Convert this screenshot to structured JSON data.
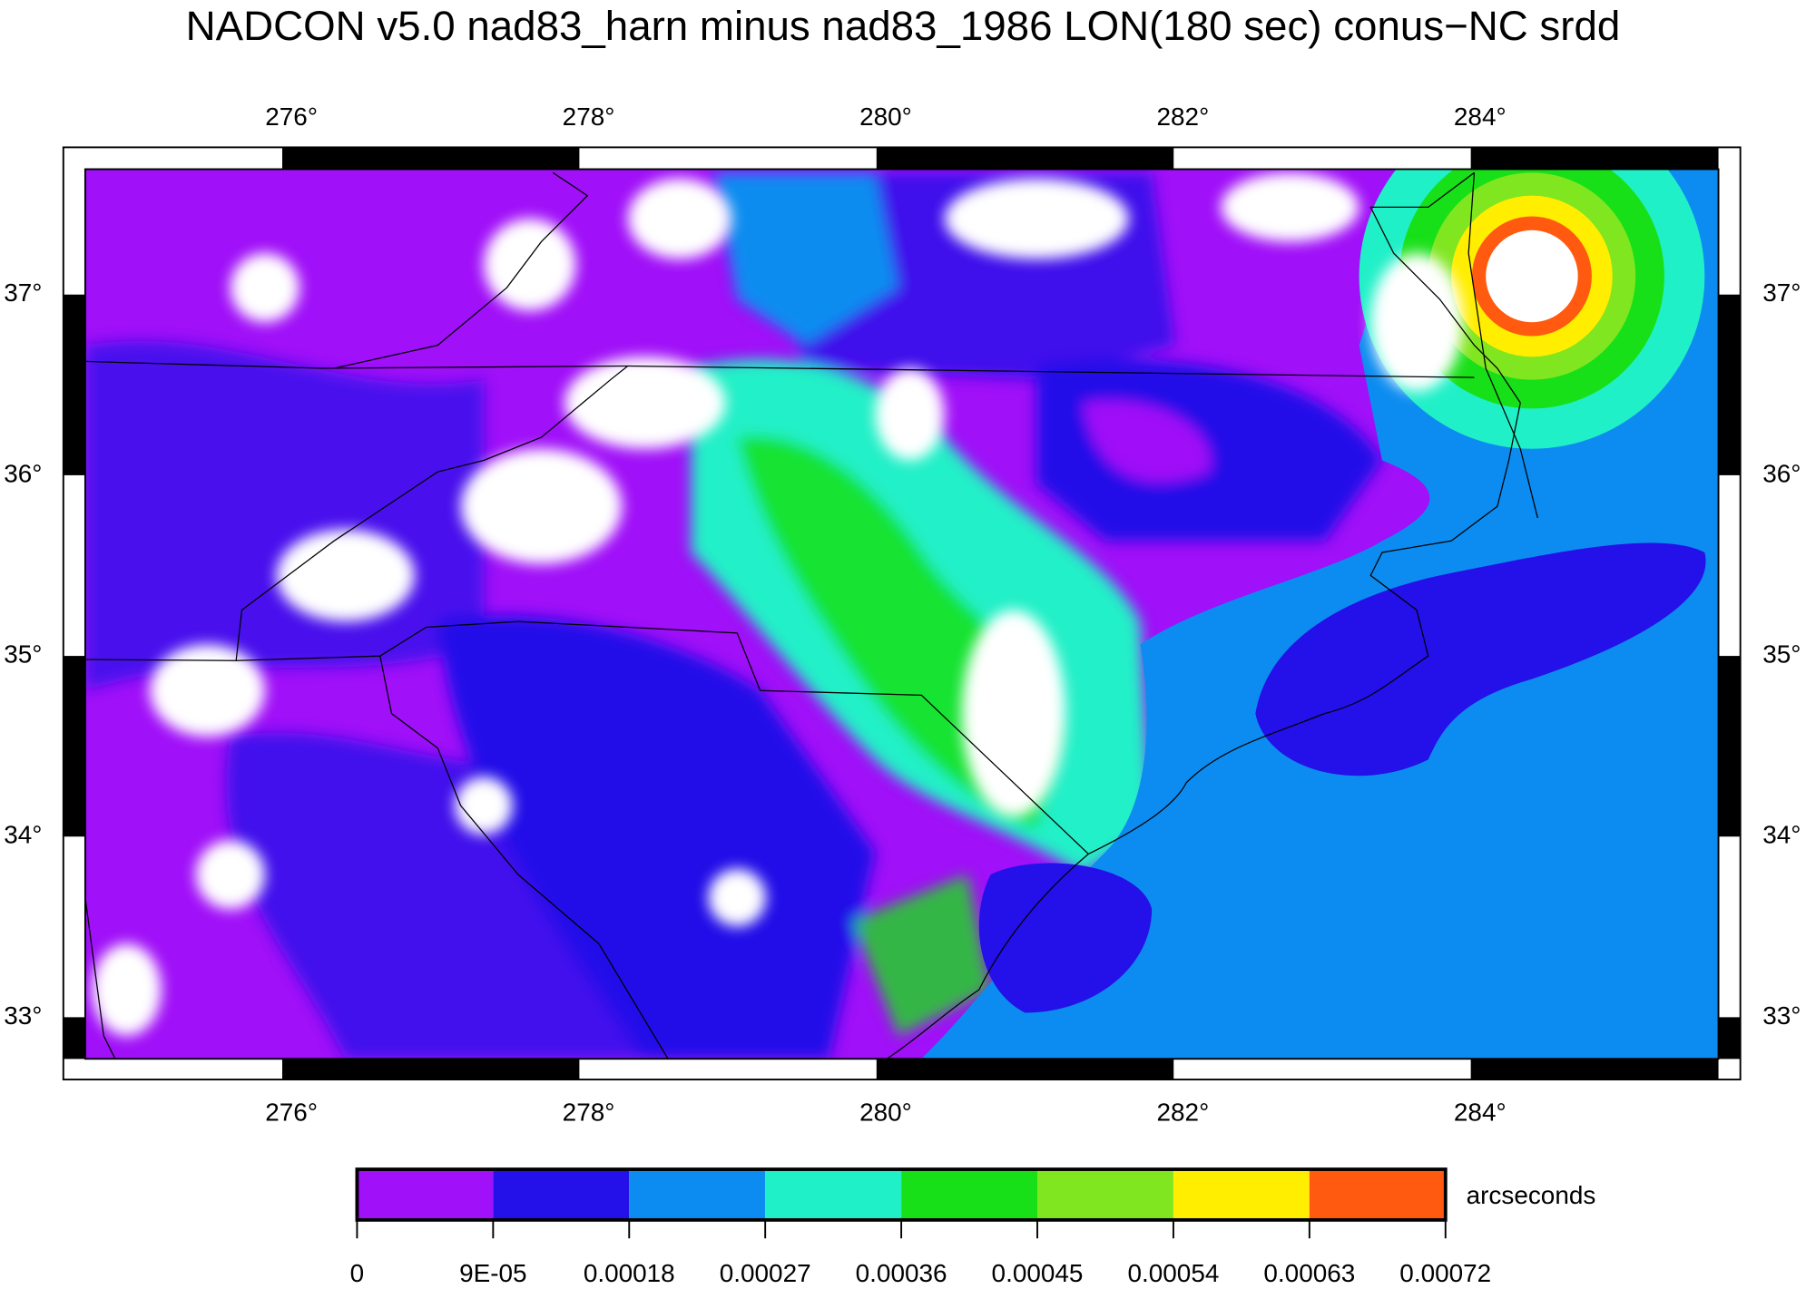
{
  "chart_data": {
    "type": "map",
    "title": "NADCON v5.0 nad83_harn minus nad83_1986 LON(180 sec) conus−NC srdd",
    "xlim": [
      274.674,
      285.667
    ],
    "ylim": [
      32.77,
      37.694
    ],
    "xticks": [
      {
        "value": 276,
        "label": "276°"
      },
      {
        "value": 278,
        "label": "278°"
      },
      {
        "value": 280,
        "label": "280°"
      },
      {
        "value": 282,
        "label": "282°"
      },
      {
        "value": 284,
        "label": "284°"
      }
    ],
    "yticks": [
      {
        "value": 33,
        "label": "33°"
      },
      {
        "value": 34,
        "label": "34°"
      },
      {
        "value": 35,
        "label": "35°"
      },
      {
        "value": 36,
        "label": "36°"
      },
      {
        "value": 37,
        "label": "37°"
      }
    ],
    "colorbar": {
      "label": "arcseconds",
      "ticks": [
        0,
        {
          "value": 9e-05,
          "label": "9E-05"
        },
        0.00018,
        0.00027,
        0.00036,
        0.00045,
        0.00054,
        0.00063,
        0.00072
      ],
      "colors": [
        "#a010f8",
        "#2410e8",
        "#0c8cf0",
        "#20f0c8",
        "#18e018",
        "#80e620",
        "#ffee00",
        "#ff5a10"
      ]
    }
  }
}
